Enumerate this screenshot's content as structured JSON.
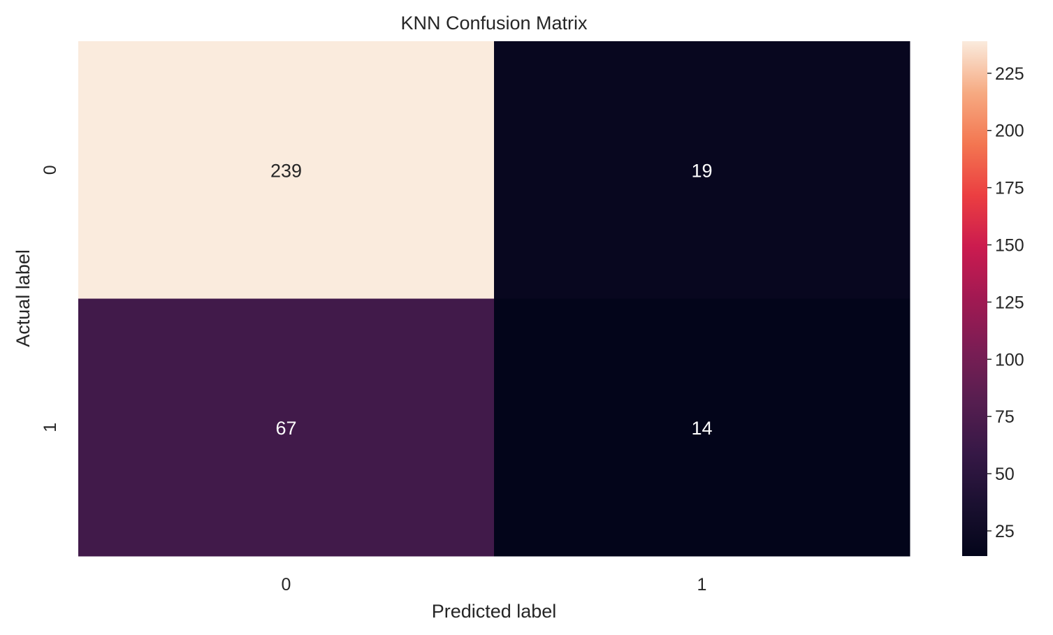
{
  "chart_data": {
    "type": "heatmap",
    "title": "KNN Confusion Matrix",
    "xlabel": "Predicted label",
    "ylabel": "Actual label",
    "x_categories": [
      "0",
      "1"
    ],
    "y_categories": [
      "0",
      "1"
    ],
    "values": [
      [
        239,
        19
      ],
      [
        67,
        14
      ]
    ],
    "colorbar": {
      "min": 14,
      "max": 239,
      "ticks": [
        25,
        50,
        75,
        100,
        125,
        150,
        175,
        200,
        225
      ],
      "colormap": "rocket"
    },
    "annotation_colors": {
      "light_cell": "#262626",
      "dark_cell": "#ffffff"
    }
  }
}
